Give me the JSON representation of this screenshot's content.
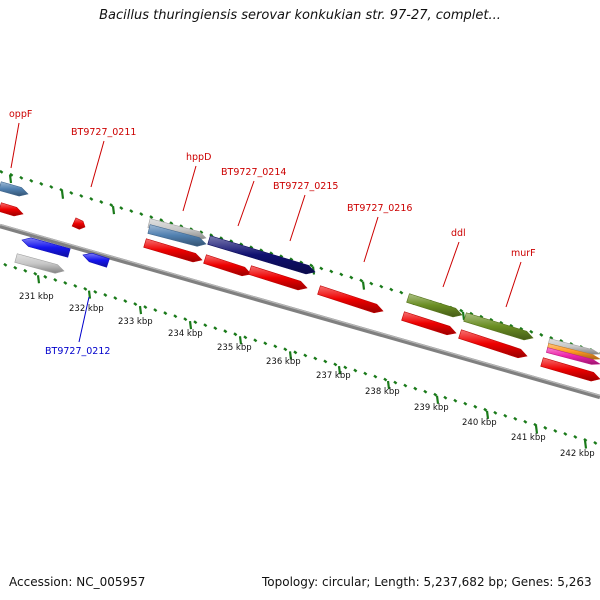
{
  "title": "Bacillus thuringiensis serovar konkukian str. 97-27, complet...",
  "footer": {
    "accession": "Accession: NC_005957",
    "summary": "Topology: circular; Length: 5,237,682 bp; Genes: 5,263"
  },
  "colors": {
    "backbone": "#808080",
    "tick": "#1a7a1a",
    "label_forward": "#cc0000",
    "label_reverse": "#0000cc",
    "forward": "#ee0000",
    "reverse": "#1515ee",
    "pseudo": "#c8c8c8",
    "steel": "#5080b0",
    "navy": "#101070",
    "olive": "#6a8e23",
    "magenta": "#ee22aa",
    "orange": "#ff9922"
  },
  "scale": [
    "231 kbp",
    "232 kbp",
    "233 kbp",
    "234 kbp",
    "235 kbp",
    "236 kbp",
    "237 kbp",
    "238 kbp",
    "239 kbp",
    "240 kbp",
    "241 kbp",
    "242 kbp"
  ],
  "gene_labels": [
    {
      "text": "oppF",
      "strand": "forward"
    },
    {
      "text": "BT9727_0211",
      "strand": "forward"
    },
    {
      "text": "hppD",
      "strand": "forward"
    },
    {
      "text": "BT9727_0214",
      "strand": "forward"
    },
    {
      "text": "BT9727_0215",
      "strand": "forward"
    },
    {
      "text": "BT9727_0216",
      "strand": "forward"
    },
    {
      "text": "ddl",
      "strand": "forward"
    },
    {
      "text": "murF",
      "strand": "forward"
    },
    {
      "text": "BT9727_0212",
      "strand": "reverse"
    }
  ],
  "features": [
    {
      "type": "gene",
      "strand": "forward",
      "color": "steel"
    },
    {
      "type": "CDS",
      "strand": "forward",
      "color": "forward"
    },
    {
      "type": "CDS",
      "strand": "forward",
      "color": "forward"
    },
    {
      "type": "CDS",
      "strand": "reverse",
      "color": "reverse"
    },
    {
      "type": "pseudo",
      "strand": "reverse",
      "color": "pseudo"
    },
    {
      "type": "CDS",
      "strand": "reverse",
      "color": "reverse"
    },
    {
      "type": "gene",
      "strand": "forward",
      "color": "pseudo"
    },
    {
      "type": "gene",
      "strand": "forward",
      "color": "steel"
    },
    {
      "type": "CDS",
      "strand": "forward",
      "color": "forward"
    },
    {
      "type": "gene",
      "strand": "forward",
      "color": "navy"
    },
    {
      "type": "CDS",
      "strand": "forward",
      "color": "forward"
    },
    {
      "type": "CDS",
      "strand": "forward",
      "color": "forward"
    },
    {
      "type": "CDS",
      "strand": "forward",
      "color": "forward"
    },
    {
      "type": "gene",
      "strand": "forward",
      "color": "olive"
    },
    {
      "type": "CDS",
      "strand": "forward",
      "color": "forward"
    },
    {
      "type": "gene",
      "strand": "forward",
      "color": "olive"
    },
    {
      "type": "CDS",
      "strand": "forward",
      "color": "forward"
    },
    {
      "type": "gene",
      "strand": "forward",
      "color": "pseudo"
    },
    {
      "type": "gene",
      "strand": "forward",
      "color": "orange"
    },
    {
      "type": "gene",
      "strand": "forward",
      "color": "magenta"
    },
    {
      "type": "CDS",
      "strand": "forward",
      "color": "forward"
    }
  ]
}
